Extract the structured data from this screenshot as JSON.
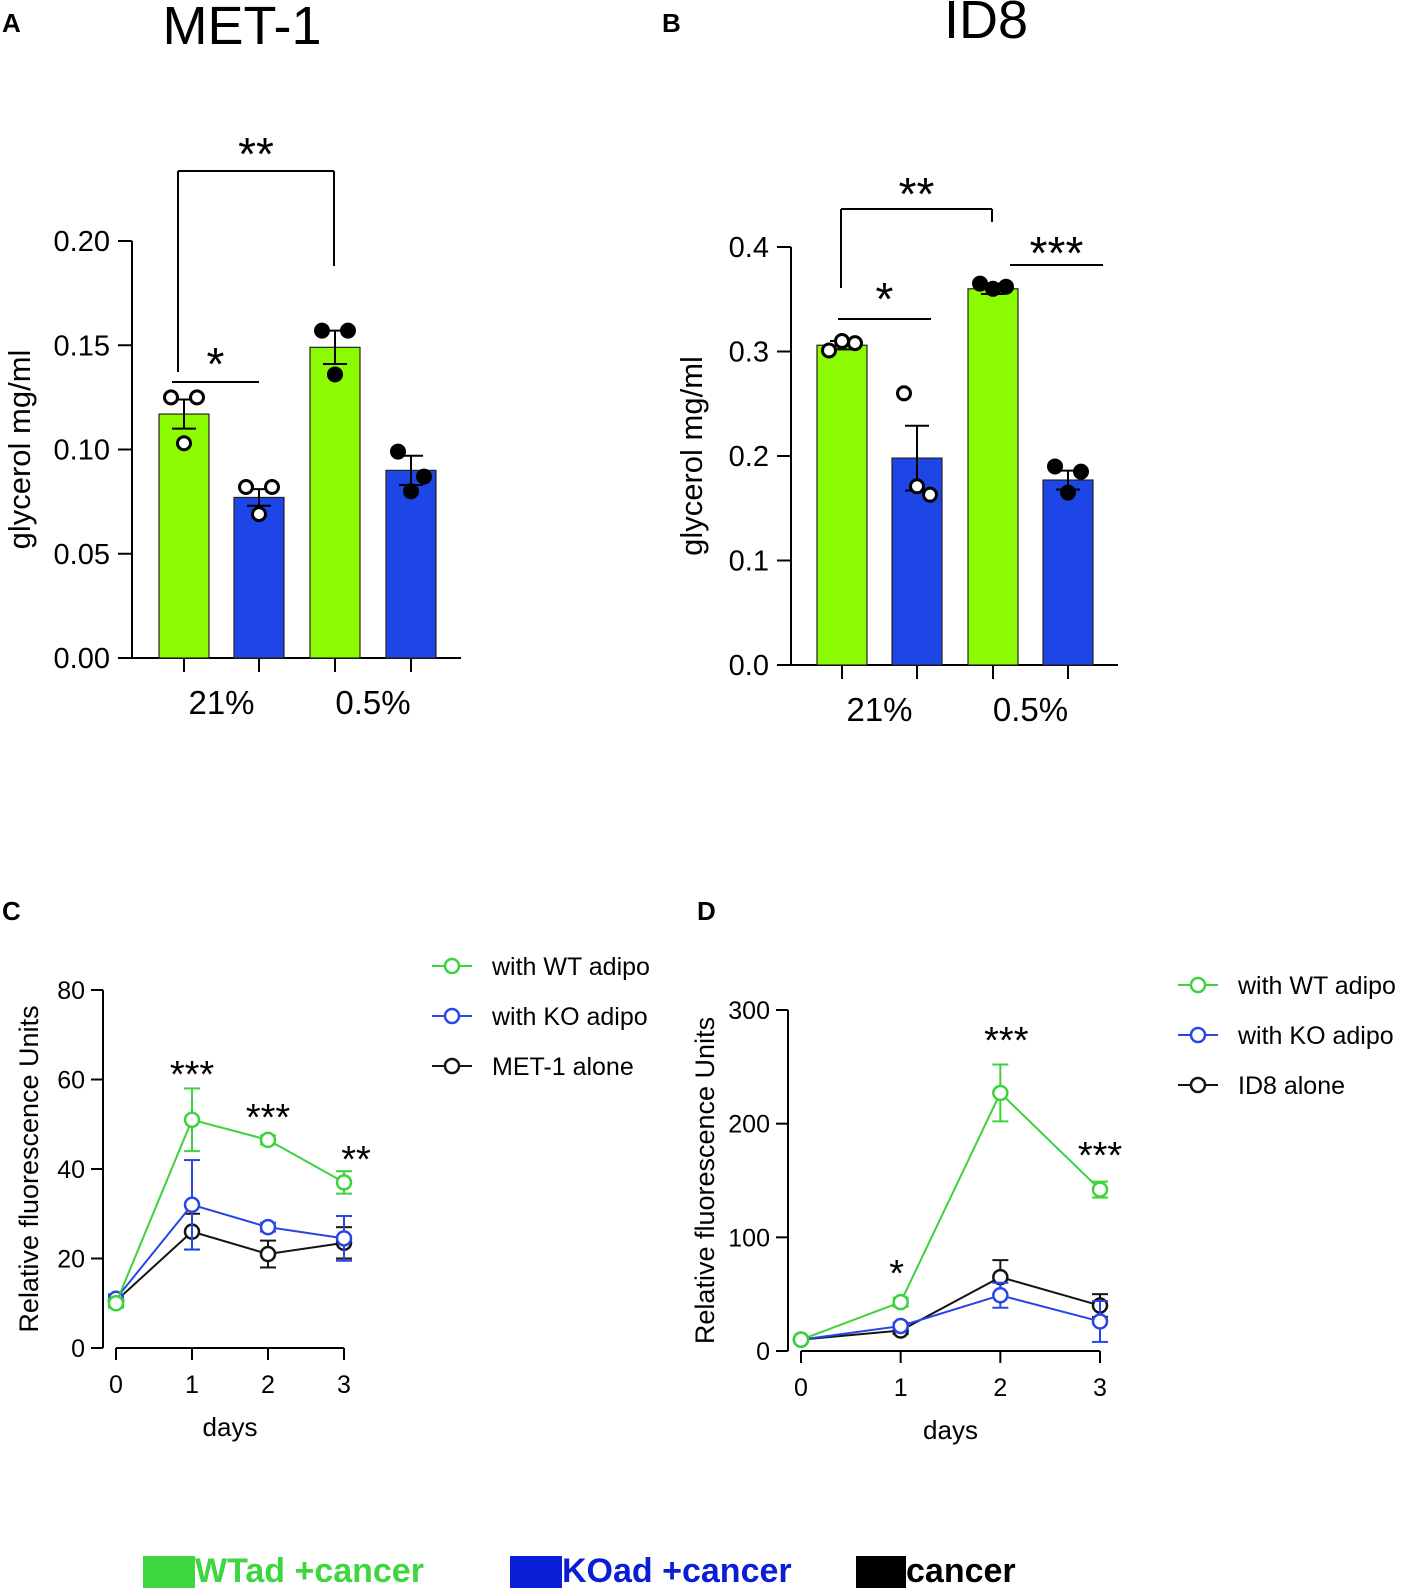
{
  "panels": {
    "A": {
      "letter": "A",
      "title": "MET-1",
      "ylabel": "glycerol mg/ml",
      "ticks": [
        "0.00",
        "0.05",
        "0.10",
        "0.15",
        "0.20"
      ],
      "groups": [
        "21%",
        "0.5%"
      ],
      "sig": [
        "**",
        "*"
      ]
    },
    "B": {
      "letter": "B",
      "title": "ID8",
      "ylabel": "glycerol mg/ml",
      "ticks": [
        "0.0",
        "0.1",
        "0.2",
        "0.3",
        "0.4"
      ],
      "groups": [
        "21%",
        "0.5%"
      ],
      "sig": [
        "**",
        "*",
        "***"
      ]
    },
    "C": {
      "letter": "C",
      "ylabel": "Relative fluorescence Units",
      "xlabel": "days",
      "xticks": [
        "0",
        "1",
        "2",
        "3"
      ],
      "yticks": [
        "0",
        "20",
        "40",
        "60",
        "80"
      ],
      "legend": [
        "with WT adipo",
        "with KO adipo",
        "MET-1 alone"
      ],
      "sig": [
        "***",
        "***",
        "**"
      ]
    },
    "D": {
      "letter": "D",
      "ylabel": "Relative fluorescence Units",
      "xlabel": "days",
      "xticks": [
        "0",
        "1",
        "2",
        "3"
      ],
      "yticks": [
        "0",
        "100",
        "200",
        "300"
      ],
      "legend": [
        "with WT adipo",
        "with KO adipo",
        "ID8 alone"
      ],
      "sig": [
        "*",
        "***",
        "***"
      ]
    }
  },
  "bottom_legend": [
    {
      "label": "WTad +cancer",
      "color": "#3ed63e"
    },
    {
      "label": "KOad +cancer",
      "color": "#0a1ed6"
    },
    {
      "label": "cancer",
      "color": "#000000"
    }
  ],
  "colors": {
    "bar_green": "#8cfa00",
    "bar_blue": "#1e46e6",
    "line_green": "#3cd23c",
    "line_blue": "#2846e6",
    "line_black": "#141414"
  },
  "chart_data": [
    {
      "type": "bar",
      "panel": "A",
      "title": "MET-1",
      "ylabel": "glycerol mg/ml",
      "xlabel": "",
      "ylim": [
        0,
        0.2
      ],
      "categories": [
        "21% WT",
        "21% KO",
        "0.5% WT",
        "0.5% KO"
      ],
      "values": [
        0.117,
        0.077,
        0.149,
        0.09
      ],
      "errors": [
        0.007,
        0.004,
        0.008,
        0.007
      ],
      "points": [
        [
          0.125,
          0.125,
          0.103
        ],
        [
          0.082,
          0.082,
          0.069
        ],
        [
          0.157,
          0.157,
          0.136
        ],
        [
          0.099,
          0.087,
          0.08
        ]
      ],
      "open_points": [
        true,
        true,
        false,
        false
      ],
      "bar_colors": [
        "#8cfa00",
        "#1e46e6",
        "#8cfa00",
        "#1e46e6"
      ],
      "comparisons": [
        {
          "from": "21% WT",
          "to": "0.5% WT",
          "label": "**"
        },
        {
          "from": "21% WT",
          "to": "21% KO",
          "label": "*"
        }
      ]
    },
    {
      "type": "bar",
      "panel": "B",
      "title": "ID8",
      "ylabel": "glycerol mg/ml",
      "xlabel": "",
      "ylim": [
        0,
        0.4
      ],
      "categories": [
        "21% WT",
        "21% KO",
        "0.5% WT",
        "0.5% KO"
      ],
      "values": [
        0.306,
        0.198,
        0.36,
        0.177
      ],
      "errors": [
        0.004,
        0.031,
        0.005,
        0.009
      ],
      "points": [
        [
          0.301,
          0.308,
          0.31
        ],
        [
          0.26,
          0.163,
          0.171
        ],
        [
          0.365,
          0.362,
          0.36
        ],
        [
          0.19,
          0.185,
          0.165
        ]
      ],
      "open_points": [
        true,
        true,
        false,
        false
      ],
      "bar_colors": [
        "#8cfa00",
        "#1e46e6",
        "#8cfa00",
        "#1e46e6"
      ],
      "comparisons": [
        {
          "from": "21% WT",
          "to": "0.5% WT",
          "label": "**"
        },
        {
          "from": "21% WT",
          "to": "21% KO",
          "label": "*"
        },
        {
          "from": "0.5% WT",
          "to": "0.5% KO",
          "label": "***"
        }
      ]
    },
    {
      "type": "line",
      "panel": "C",
      "xlabel": "days",
      "ylabel": "Relative fluorescence Units",
      "xlim": [
        0,
        3
      ],
      "ylim": [
        0,
        80
      ],
      "x": [
        0,
        1,
        2,
        3
      ],
      "series": [
        {
          "name": "with WT adipo",
          "color": "#3cd23c",
          "values": [
            10,
            51,
            46.5,
            37
          ],
          "errors": [
            1,
            7,
            1,
            2.5
          ]
        },
        {
          "name": "with KO adipo",
          "color": "#2846e6",
          "values": [
            11,
            32,
            27,
            24.5
          ],
          "errors": [
            1,
            10,
            1,
            5
          ]
        },
        {
          "name": "MET-1 alone",
          "color": "#141414",
          "values": [
            10.5,
            26,
            21,
            23.5
          ],
          "errors": [
            1,
            4,
            3,
            3.5
          ]
        }
      ],
      "annotations": [
        {
          "x": 1,
          "label": "***"
        },
        {
          "x": 2,
          "label": "***"
        },
        {
          "x": 3,
          "label": "**"
        }
      ]
    },
    {
      "type": "line",
      "panel": "D",
      "xlabel": "days",
      "ylabel": "Relative fluorescence Units",
      "xlim": [
        0,
        3
      ],
      "ylim": [
        0,
        300
      ],
      "x": [
        0,
        1,
        2,
        3
      ],
      "series": [
        {
          "name": "with WT adipo",
          "color": "#3cd23c",
          "values": [
            10,
            43,
            227,
            142
          ],
          "errors": [
            2,
            4,
            25,
            7
          ]
        },
        {
          "name": "with KO adipo",
          "color": "#2846e6",
          "values": [
            10,
            22,
            49,
            26
          ],
          "errors": [
            2,
            3,
            11,
            18
          ]
        },
        {
          "name": "ID8 alone",
          "color": "#141414",
          "values": [
            10,
            18,
            65,
            40
          ],
          "errors": [
            2,
            3,
            15,
            10
          ]
        }
      ],
      "annotations": [
        {
          "x": 1,
          "label": "*"
        },
        {
          "x": 2,
          "label": "***"
        },
        {
          "x": 3,
          "label": "***"
        }
      ]
    }
  ]
}
